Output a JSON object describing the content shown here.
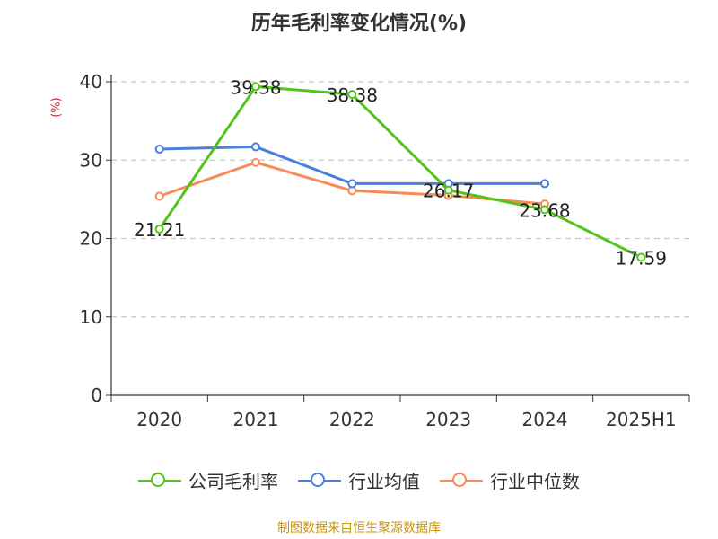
{
  "title": "历年毛利率变化情况(%)",
  "source": "制图数据来自恒生聚源数据库",
  "chart_data": {
    "type": "line",
    "title": "历年毛利率变化情况(%)",
    "ylabel": "(%)",
    "xlabel": "",
    "categories": [
      "2020",
      "2021",
      "2022",
      "2023",
      "2024",
      "2025H1"
    ],
    "ylim": [
      0,
      40
    ],
    "yticks": [
      0,
      10,
      20,
      30,
      40
    ],
    "grid": true,
    "legend_position": "bottom",
    "series": [
      {
        "name": "公司毛利率",
        "color": "#52c41a",
        "values": [
          21.21,
          39.38,
          38.38,
          26.17,
          23.68,
          17.59
        ],
        "labels": [
          "21.21",
          "39.38",
          "38.38",
          "26.17",
          "23.68",
          "17.59"
        ]
      },
      {
        "name": "行业均值",
        "color": "#4a7fdc",
        "values": [
          31.4,
          31.7,
          27.0,
          27.0,
          27.0,
          null
        ]
      },
      {
        "name": "行业中位数",
        "color": "#f78c57",
        "values": [
          25.4,
          29.7,
          26.1,
          25.5,
          24.4,
          null
        ]
      }
    ]
  }
}
